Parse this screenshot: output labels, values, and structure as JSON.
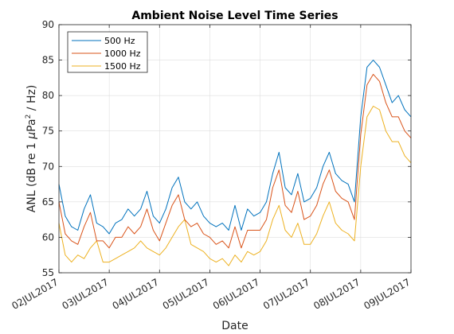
{
  "chart_data": {
    "type": "line",
    "title": "Ambient Noise Level Time Series",
    "xlabel": "Date",
    "ylabel": "ANL (dB re 1 μPa² / Hz)",
    "ylabel_parts": {
      "pre": "ANL (dB re 1 ",
      "mu": "μ",
      "unit": "Pa",
      "sup": "2",
      "post": " / Hz)"
    },
    "xlim": [
      "2017-07-02",
      "2017-07-09"
    ],
    "ylim": [
      55,
      90
    ],
    "x_tick_labels": [
      "02JUL2017",
      "03JUL2017",
      "04JUL2017",
      "05JUL2017",
      "06JUL2017",
      "07JUL2017",
      "08JUL2017",
      "09JUL2017"
    ],
    "y_tick_labels": [
      "55",
      "60",
      "65",
      "70",
      "75",
      "80",
      "85",
      "90"
    ],
    "grid": true,
    "legend_position": "top-left",
    "x": [
      "2017-07-02 00:00",
      "2017-07-02 03:00",
      "2017-07-02 06:00",
      "2017-07-02 09:00",
      "2017-07-02 12:00",
      "2017-07-02 15:00",
      "2017-07-02 18:00",
      "2017-07-02 21:00",
      "2017-07-03 00:00",
      "2017-07-03 03:00",
      "2017-07-03 06:00",
      "2017-07-03 09:00",
      "2017-07-03 12:00",
      "2017-07-03 15:00",
      "2017-07-03 18:00",
      "2017-07-03 21:00",
      "2017-07-04 00:00",
      "2017-07-04 03:00",
      "2017-07-04 06:00",
      "2017-07-04 09:00",
      "2017-07-04 12:00",
      "2017-07-04 15:00",
      "2017-07-04 18:00",
      "2017-07-04 21:00",
      "2017-07-05 00:00",
      "2017-07-05 03:00",
      "2017-07-05 06:00",
      "2017-07-05 09:00",
      "2017-07-05 12:00",
      "2017-07-05 15:00",
      "2017-07-05 18:00",
      "2017-07-05 21:00",
      "2017-07-06 00:00",
      "2017-07-06 03:00",
      "2017-07-06 06:00",
      "2017-07-06 09:00",
      "2017-07-06 12:00",
      "2017-07-06 15:00",
      "2017-07-06 18:00",
      "2017-07-06 21:00",
      "2017-07-07 00:00",
      "2017-07-07 03:00",
      "2017-07-07 06:00",
      "2017-07-07 09:00",
      "2017-07-07 12:00",
      "2017-07-07 15:00",
      "2017-07-07 18:00",
      "2017-07-07 21:00",
      "2017-07-08 00:00",
      "2017-07-08 03:00",
      "2017-07-08 06:00",
      "2017-07-08 09:00",
      "2017-07-08 12:00",
      "2017-07-08 15:00",
      "2017-07-08 18:00",
      "2017-07-08 21:00",
      "2017-07-09 00:00"
    ],
    "series": [
      {
        "name": "500 Hz",
        "color": "#0072BD",
        "values": [
          67.5,
          63.0,
          61.5,
          61.0,
          64.0,
          66.0,
          62.0,
          61.5,
          60.5,
          62.0,
          62.5,
          64.0,
          63.0,
          64.0,
          66.5,
          63.0,
          62.0,
          64.0,
          67.0,
          68.5,
          65.0,
          64.0,
          65.0,
          63.0,
          62.0,
          61.5,
          62.0,
          61.0,
          64.5,
          61.0,
          64.0,
          63.0,
          63.5,
          65.0,
          69.0,
          72.0,
          67.0,
          66.0,
          69.0,
          65.0,
          65.5,
          67.0,
          70.0,
          72.0,
          69.0,
          68.0,
          67.5,
          65.0,
          77.0,
          84.0,
          85.0,
          84.0,
          81.5,
          79.0,
          80.0,
          78.0,
          77.0
        ]
      },
      {
        "name": "1000 Hz",
        "color": "#D95319",
        "values": [
          65.0,
          60.5,
          59.5,
          59.0,
          61.5,
          63.5,
          59.5,
          59.5,
          58.5,
          60.0,
          60.0,
          61.5,
          60.5,
          61.5,
          64.0,
          61.0,
          59.5,
          62.0,
          64.5,
          66.0,
          62.5,
          61.5,
          62.0,
          60.5,
          60.0,
          59.0,
          59.5,
          58.5,
          61.5,
          58.5,
          61.0,
          61.0,
          61.0,
          62.5,
          67.0,
          69.5,
          64.5,
          63.5,
          66.5,
          62.5,
          63.0,
          64.5,
          67.5,
          69.5,
          66.5,
          65.5,
          65.0,
          62.5,
          74.5,
          81.5,
          83.0,
          82.0,
          79.0,
          77.0,
          77.0,
          75.0,
          74.0
        ]
      },
      {
        "name": "1500 Hz",
        "color": "#EDB120",
        "values": [
          62.0,
          57.5,
          56.5,
          57.5,
          57.0,
          58.5,
          59.5,
          56.5,
          56.5,
          57.0,
          57.5,
          58.0,
          58.5,
          59.5,
          58.5,
          58.0,
          57.5,
          58.5,
          60.0,
          61.5,
          62.5,
          59.0,
          58.5,
          58.0,
          57.0,
          56.5,
          57.0,
          56.0,
          57.5,
          56.5,
          58.0,
          57.5,
          58.0,
          59.5,
          62.5,
          64.5,
          61.0,
          60.0,
          62.0,
          59.0,
          59.0,
          60.5,
          63.0,
          65.0,
          62.0,
          61.0,
          60.5,
          59.5,
          70.0,
          77.0,
          78.5,
          78.0,
          75.0,
          73.5,
          73.5,
          71.5,
          70.5
        ]
      }
    ]
  }
}
